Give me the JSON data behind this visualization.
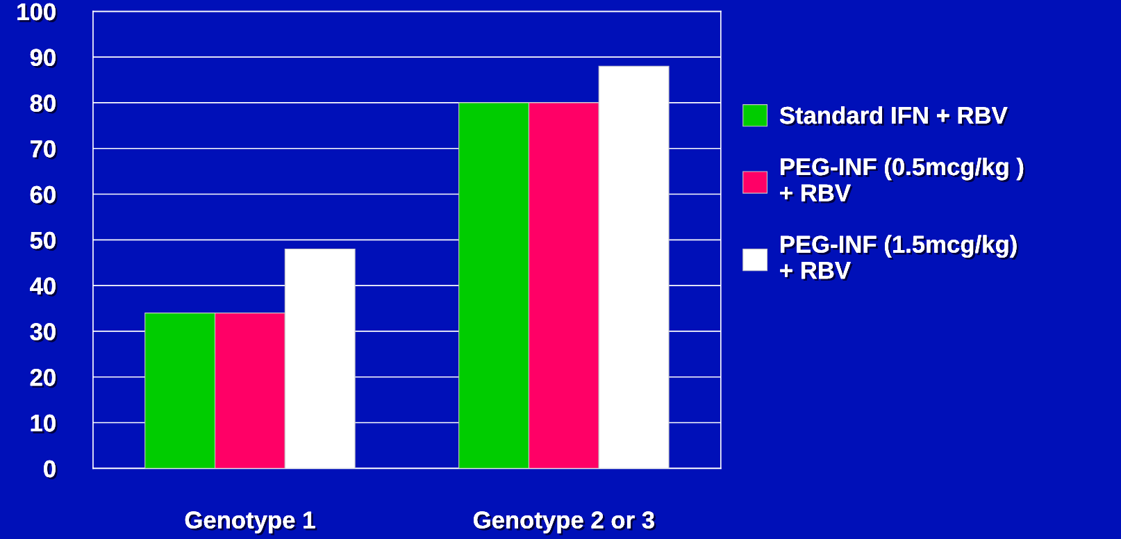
{
  "chart_data": {
    "type": "bar",
    "categories": [
      "Genotype 1",
      "Genotype 2 or 3"
    ],
    "series": [
      {
        "name": "Standard IFN + RBV",
        "color": "#00cc00",
        "values": [
          34,
          80
        ]
      },
      {
        "name": "PEG-INF (0.5mcg/kg )\n+ RBV",
        "color": "#ff0066",
        "values": [
          34,
          80
        ]
      },
      {
        "name": "PEG-INF (1.5mcg/kg)\n+ RBV",
        "color": "#ffffff",
        "values": [
          48,
          88
        ]
      }
    ],
    "ylim": [
      0,
      100
    ],
    "yticks": [
      0,
      10,
      20,
      30,
      40,
      50,
      60,
      70,
      80,
      90,
      100
    ],
    "grid": "y",
    "legend": "right"
  }
}
